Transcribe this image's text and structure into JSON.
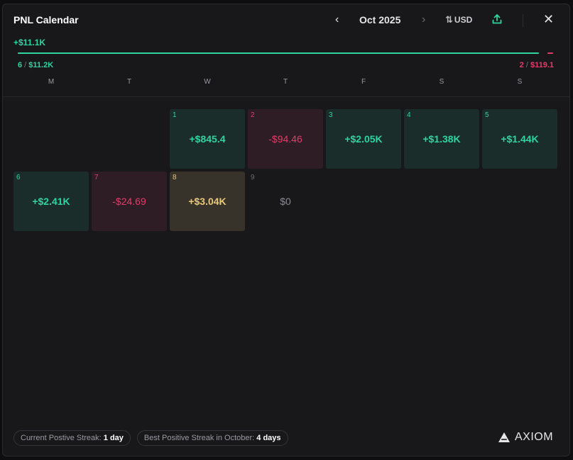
{
  "header": {
    "title": "PNL Calendar",
    "prev_glyph": "‹",
    "month": "Oct 2025",
    "next_glyph": "›",
    "currency_glyph": "⇅",
    "currency": "USD",
    "share_icon": "share-upload-icon",
    "close_glyph": "✕"
  },
  "summary": {
    "total": "+$11.1K",
    "win_days": "6",
    "win_amount": "$11.2K",
    "loss_days": "2",
    "loss_amount": "$119.1",
    "separator": " / ",
    "positive_fraction": 0.989,
    "colors": {
      "positive": "#2fd4a0",
      "negative": "#e53b6b"
    }
  },
  "weekdays": [
    "M",
    "T",
    "W",
    "T",
    "F",
    "S",
    "S"
  ],
  "days": [
    {
      "day": "1",
      "value": "+$845.4",
      "kind": "pos"
    },
    {
      "day": "2",
      "value": "-$94.46",
      "kind": "neg"
    },
    {
      "day": "3",
      "value": "+$2.05K",
      "kind": "pos"
    },
    {
      "day": "4",
      "value": "+$1.38K",
      "kind": "pos"
    },
    {
      "day": "5",
      "value": "+$1.44K",
      "kind": "pos"
    },
    {
      "day": "6",
      "value": "+$2.41K",
      "kind": "pos"
    },
    {
      "day": "7",
      "value": "-$24.69",
      "kind": "neg"
    },
    {
      "day": "8",
      "value": "+$3.04K",
      "kind": "gold"
    },
    {
      "day": "9",
      "value": "$0",
      "kind": "zero"
    }
  ],
  "footer": {
    "current_streak_label": "Current Postive Streak:",
    "current_streak_value": "1 day",
    "best_streak_label": "Best Positive Streak in October:",
    "best_streak_value": "4 days",
    "brand": "AXIOM",
    "brand_icon": "axiom-logo-icon"
  }
}
